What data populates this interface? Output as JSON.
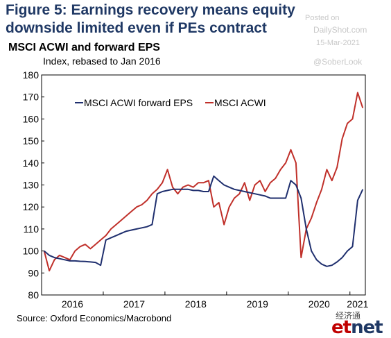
{
  "figure": {
    "title": "Figure 5: Earnings recovery means equity downside limited even if PEs contract"
  },
  "watermark": {
    "posted": "Posted on",
    "site": "DailyShot.com",
    "date": "15-Mar-2021",
    "handle": "@SoberLook"
  },
  "source": "Source: Oxford Economics/Macrobond",
  "brand": {
    "chinese": "经济通",
    "logo_e": "et",
    "logo_n": "net"
  },
  "colors": {
    "eps": "#1f2f6e",
    "acwi": "#c0302a",
    "logo_red": "#c00000",
    "logo_blue": "#1f3864"
  },
  "chart_data": {
    "type": "line",
    "title": "MSCI ACWI and forward EPS",
    "subtitle": "Index, rebased to Jan 2016",
    "ylim": [
      80,
      180
    ],
    "yticks": [
      80,
      90,
      100,
      110,
      120,
      130,
      140,
      150,
      160,
      170,
      180
    ],
    "xlim": [
      "2016-01",
      "2021-03"
    ],
    "xtick_labels": [
      "2016",
      "2017",
      "2018",
      "2019",
      "2020",
      "2021"
    ],
    "grid": false,
    "legend_position": "upper-left",
    "series": [
      {
        "name": "MSCI ACWI forward EPS",
        "color": "#1f2f6e",
        "points": [
          [
            "2016-01",
            100
          ],
          [
            "2016-02",
            98
          ],
          [
            "2016-03",
            97
          ],
          [
            "2016-04",
            96.5
          ],
          [
            "2016-05",
            96
          ],
          [
            "2016-06",
            95.5
          ],
          [
            "2016-07",
            95.5
          ],
          [
            "2016-08",
            95.3
          ],
          [
            "2016-09",
            95.2
          ],
          [
            "2016-10",
            95
          ],
          [
            "2016-11",
            94.8
          ],
          [
            "2016-12",
            93.5
          ],
          [
            "2017-01",
            105
          ],
          [
            "2017-02",
            106
          ],
          [
            "2017-03",
            107
          ],
          [
            "2017-04",
            108
          ],
          [
            "2017-05",
            109
          ],
          [
            "2017-06",
            109.5
          ],
          [
            "2017-07",
            110
          ],
          [
            "2017-08",
            110.5
          ],
          [
            "2017-09",
            111
          ],
          [
            "2017-10",
            112
          ],
          [
            "2017-11",
            126
          ],
          [
            "2017-12",
            127
          ],
          [
            "2018-01",
            127.5
          ],
          [
            "2018-02",
            128
          ],
          [
            "2018-03",
            128
          ],
          [
            "2018-04",
            128
          ],
          [
            "2018-05",
            128
          ],
          [
            "2018-06",
            127.5
          ],
          [
            "2018-07",
            127.5
          ],
          [
            "2018-08",
            127
          ],
          [
            "2018-09",
            127
          ],
          [
            "2018-10",
            134
          ],
          [
            "2018-11",
            132
          ],
          [
            "2018-12",
            130
          ],
          [
            "2019-01",
            129
          ],
          [
            "2019-02",
            128
          ],
          [
            "2019-03",
            127.5
          ],
          [
            "2019-04",
            127
          ],
          [
            "2019-05",
            126.5
          ],
          [
            "2019-06",
            126
          ],
          [
            "2019-07",
            125.5
          ],
          [
            "2019-08",
            125
          ],
          [
            "2019-09",
            124
          ],
          [
            "2019-10",
            124
          ],
          [
            "2019-11",
            124
          ],
          [
            "2019-12",
            124
          ],
          [
            "2020-01",
            132
          ],
          [
            "2020-02",
            130
          ],
          [
            "2020-03",
            124
          ],
          [
            "2020-04",
            110
          ],
          [
            "2020-05",
            100
          ],
          [
            "2020-06",
            96
          ],
          [
            "2020-07",
            94
          ],
          [
            "2020-08",
            93
          ],
          [
            "2020-09",
            93.5
          ],
          [
            "2020-10",
            95
          ],
          [
            "2020-11",
            97
          ],
          [
            "2020-12",
            100
          ],
          [
            "2021-01",
            102
          ],
          [
            "2021-02",
            123
          ],
          [
            "2021-03",
            128
          ]
        ]
      },
      {
        "name": "MSCI ACWI",
        "color": "#c0302a",
        "points": [
          [
            "2016-01",
            100
          ],
          [
            "2016-02",
            91
          ],
          [
            "2016-03",
            96
          ],
          [
            "2016-04",
            98
          ],
          [
            "2016-05",
            97
          ],
          [
            "2016-06",
            96
          ],
          [
            "2016-07",
            100
          ],
          [
            "2016-08",
            102
          ],
          [
            "2016-09",
            103
          ],
          [
            "2016-10",
            101
          ],
          [
            "2016-11",
            103
          ],
          [
            "2016-12",
            105
          ],
          [
            "2017-01",
            107
          ],
          [
            "2017-02",
            110
          ],
          [
            "2017-03",
            112
          ],
          [
            "2017-04",
            114
          ],
          [
            "2017-05",
            116
          ],
          [
            "2017-06",
            118
          ],
          [
            "2017-07",
            120
          ],
          [
            "2017-08",
            121
          ],
          [
            "2017-09",
            123
          ],
          [
            "2017-10",
            126
          ],
          [
            "2017-11",
            128
          ],
          [
            "2017-12",
            131
          ],
          [
            "2018-01",
            137
          ],
          [
            "2018-02",
            129
          ],
          [
            "2018-03",
            126
          ],
          [
            "2018-04",
            129
          ],
          [
            "2018-05",
            130
          ],
          [
            "2018-06",
            129
          ],
          [
            "2018-07",
            131
          ],
          [
            "2018-08",
            131
          ],
          [
            "2018-09",
            132
          ],
          [
            "2018-10",
            120
          ],
          [
            "2018-11",
            122
          ],
          [
            "2018-12",
            112
          ],
          [
            "2019-01",
            120
          ],
          [
            "2019-02",
            124
          ],
          [
            "2019-03",
            126
          ],
          [
            "2019-04",
            131
          ],
          [
            "2019-05",
            123
          ],
          [
            "2019-06",
            130
          ],
          [
            "2019-07",
            132
          ],
          [
            "2019-08",
            127
          ],
          [
            "2019-09",
            131
          ],
          [
            "2019-10",
            133
          ],
          [
            "2019-11",
            137
          ],
          [
            "2019-12",
            140
          ],
          [
            "2020-01",
            146
          ],
          [
            "2020-02",
            140
          ],
          [
            "2020-03",
            97
          ],
          [
            "2020-04",
            110
          ],
          [
            "2020-05",
            115
          ],
          [
            "2020-06",
            122
          ],
          [
            "2020-07",
            128
          ],
          [
            "2020-08",
            137
          ],
          [
            "2020-09",
            132
          ],
          [
            "2020-10",
            138
          ],
          [
            "2020-11",
            151
          ],
          [
            "2020-12",
            158
          ],
          [
            "2021-01",
            160
          ],
          [
            "2021-02",
            172
          ],
          [
            "2021-03",
            165
          ]
        ]
      }
    ]
  }
}
